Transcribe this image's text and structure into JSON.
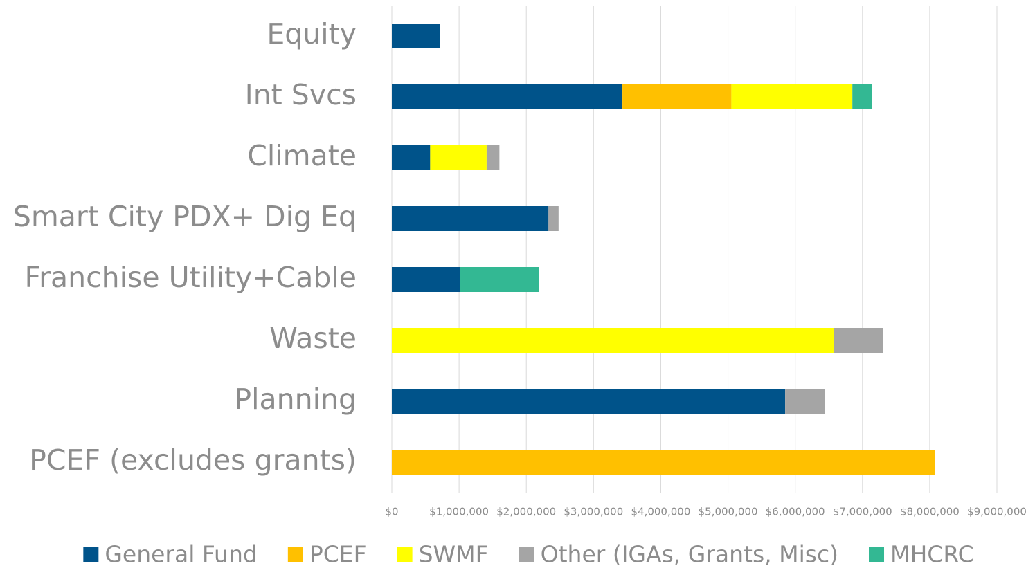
{
  "chart_data": {
    "type": "stacked-barh",
    "categories": [
      "Equity",
      "Int Svcs",
      "Climate",
      "Smart City PDX+ Dig Eq",
      "Franchise Utility+Cable",
      "Waste",
      "Planning",
      "PCEF (excludes grants)"
    ],
    "series": [
      {
        "name": "General Fund",
        "color": "#00538a",
        "values": [
          720000,
          3430000,
          570000,
          2330000,
          1010000,
          null,
          5850000,
          null
        ]
      },
      {
        "name": "PCEF",
        "color": "#ffc000",
        "values": [
          null,
          1620000,
          null,
          null,
          null,
          null,
          null,
          8080000
        ]
      },
      {
        "name": "SWMF",
        "color": "#ffff00",
        "values": [
          null,
          1800000,
          840000,
          null,
          null,
          6580000,
          null,
          null
        ]
      },
      {
        "name": "Other (IGAs, Grants, Misc)",
        "color": "#a5a5a5",
        "values": [
          null,
          null,
          190000,
          150000,
          null,
          730000,
          590000,
          null
        ]
      },
      {
        "name": "MHCRC",
        "color": "#33b893",
        "values": [
          null,
          290000,
          null,
          null,
          1180000,
          null,
          null,
          null
        ]
      }
    ],
    "xlim": [
      0,
      9000000
    ],
    "xticks": [
      {
        "value": 0,
        "label": "$0"
      },
      {
        "value": 1000000,
        "label": "$1,000,000"
      },
      {
        "value": 2000000,
        "label": "$2,000,000"
      },
      {
        "value": 3000000,
        "label": "$3,000,000"
      },
      {
        "value": 4000000,
        "label": "$4,000,000"
      },
      {
        "value": 5000000,
        "label": "$5,000,000"
      },
      {
        "value": 6000000,
        "label": "$6,000,000"
      },
      {
        "value": 7000000,
        "label": "$7,000,000"
      },
      {
        "value": 8000000,
        "label": "$8,000,000"
      },
      {
        "value": 9000000,
        "label": "$9,000,000"
      }
    ],
    "grid": true,
    "legend": "bottom"
  }
}
